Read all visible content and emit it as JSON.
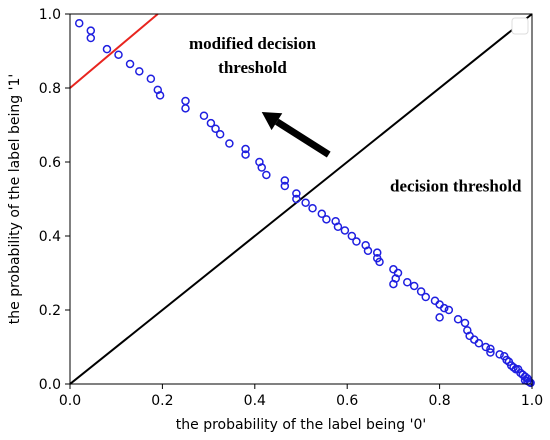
{
  "chart_data": {
    "type": "scatter",
    "xlabel": "the probability of the label being '0'",
    "ylabel": "the probability of the label being '1'",
    "xlim": [
      0,
      1
    ],
    "ylim": [
      0,
      1
    ],
    "xticks": [
      "0.0",
      "0.2",
      "0.4",
      "0.6",
      "0.8",
      "1.0"
    ],
    "yticks": [
      "0.0",
      "0.2",
      "0.4",
      "0.6",
      "0.8",
      "1.0"
    ],
    "grid": false,
    "annotations": {
      "modified_line1": "modified decision",
      "modified_line2": "threshold",
      "decision": "decision threshold"
    },
    "lines": [
      {
        "label": "decision threshold",
        "color": "#000000",
        "x": [
          0,
          1
        ],
        "y": [
          0,
          1
        ]
      },
      {
        "label": "modified decision threshold",
        "color": "#e8251f",
        "x": [
          0,
          0.19
        ],
        "y": [
          0.8,
          1.0
        ]
      }
    ],
    "arrow": {
      "from": [
        0.56,
        0.62
      ],
      "to": [
        0.415,
        0.735
      ],
      "color": "#000000"
    },
    "series": [
      {
        "marker": "open-circle",
        "color": "#1f1fe0",
        "points": [
          [
            0.02,
            0.975
          ],
          [
            0.045,
            0.955
          ],
          [
            0.045,
            0.935
          ],
          [
            0.08,
            0.905
          ],
          [
            0.105,
            0.89
          ],
          [
            0.13,
            0.865
          ],
          [
            0.15,
            0.845
          ],
          [
            0.175,
            0.825
          ],
          [
            0.19,
            0.795
          ],
          [
            0.195,
            0.78
          ],
          [
            0.25,
            0.765
          ],
          [
            0.25,
            0.745
          ],
          [
            0.29,
            0.725
          ],
          [
            0.305,
            0.705
          ],
          [
            0.315,
            0.69
          ],
          [
            0.325,
            0.675
          ],
          [
            0.345,
            0.65
          ],
          [
            0.38,
            0.635
          ],
          [
            0.38,
            0.62
          ],
          [
            0.41,
            0.6
          ],
          [
            0.415,
            0.585
          ],
          [
            0.425,
            0.565
          ],
          [
            0.465,
            0.55
          ],
          [
            0.465,
            0.535
          ],
          [
            0.49,
            0.515
          ],
          [
            0.49,
            0.5
          ],
          [
            0.51,
            0.49
          ],
          [
            0.525,
            0.475
          ],
          [
            0.545,
            0.46
          ],
          [
            0.555,
            0.445
          ],
          [
            0.575,
            0.44
          ],
          [
            0.58,
            0.425
          ],
          [
            0.595,
            0.415
          ],
          [
            0.61,
            0.4
          ],
          [
            0.62,
            0.385
          ],
          [
            0.64,
            0.375
          ],
          [
            0.645,
            0.36
          ],
          [
            0.665,
            0.355
          ],
          [
            0.665,
            0.34
          ],
          [
            0.67,
            0.33
          ],
          [
            0.7,
            0.31
          ],
          [
            0.71,
            0.3
          ],
          [
            0.705,
            0.285
          ],
          [
            0.7,
            0.27
          ],
          [
            0.73,
            0.275
          ],
          [
            0.745,
            0.265
          ],
          [
            0.76,
            0.25
          ],
          [
            0.77,
            0.235
          ],
          [
            0.79,
            0.225
          ],
          [
            0.8,
            0.215
          ],
          [
            0.81,
            0.205
          ],
          [
            0.82,
            0.2
          ],
          [
            0.8,
            0.18
          ],
          [
            0.84,
            0.175
          ],
          [
            0.855,
            0.165
          ],
          [
            0.86,
            0.145
          ],
          [
            0.865,
            0.13
          ],
          [
            0.875,
            0.12
          ],
          [
            0.885,
            0.11
          ],
          [
            0.9,
            0.1
          ],
          [
            0.91,
            0.095
          ],
          [
            0.91,
            0.085
          ],
          [
            0.93,
            0.08
          ],
          [
            0.94,
            0.075
          ],
          [
            0.945,
            0.065
          ],
          [
            0.95,
            0.06
          ],
          [
            0.955,
            0.05
          ],
          [
            0.96,
            0.045
          ],
          [
            0.965,
            0.04
          ],
          [
            0.97,
            0.04
          ],
          [
            0.975,
            0.03
          ],
          [
            0.98,
            0.025
          ],
          [
            0.985,
            0.02
          ],
          [
            0.99,
            0.015
          ],
          [
            0.985,
            0.01
          ],
          [
            0.99,
            0.008
          ],
          [
            0.995,
            0.005
          ],
          [
            0.997,
            0.003
          ]
        ]
      }
    ]
  }
}
